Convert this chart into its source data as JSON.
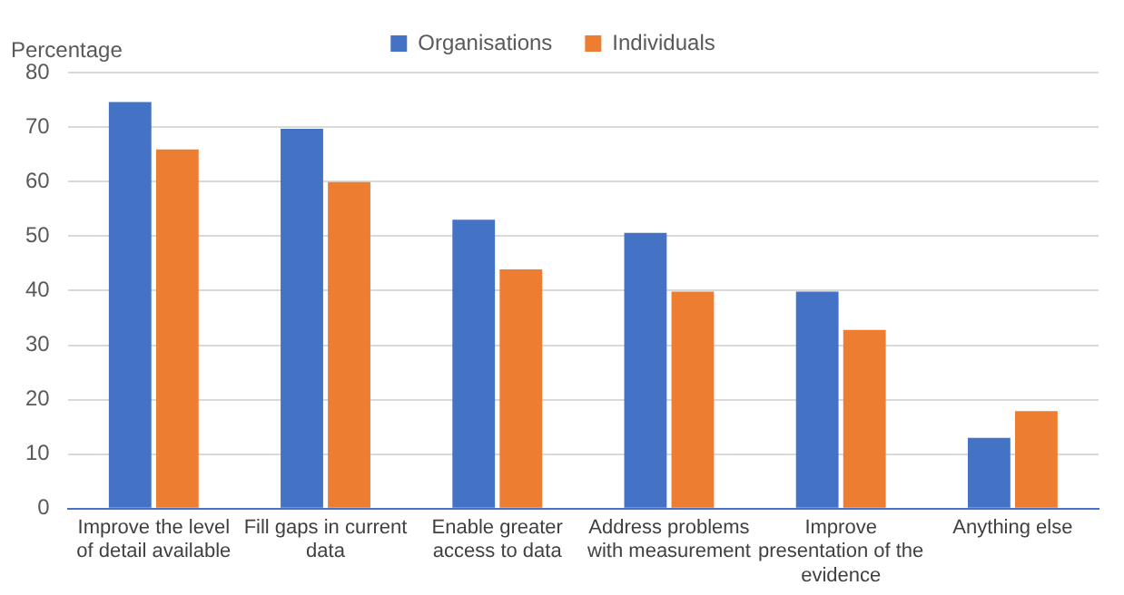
{
  "chart_data": {
    "type": "bar",
    "ylabel": "Percentage",
    "categories": [
      "Improve the level of detail available",
      "Fill gaps in current data",
      "Enable greater access to data",
      "Address problems with measurement",
      "Improve presentation of the evidence",
      "Anything else"
    ],
    "series": [
      {
        "name": "Organisations",
        "color": "#4472c4",
        "values": [
          74.6,
          69.7,
          53,
          50.6,
          39.8,
          13
        ]
      },
      {
        "name": "Individuals",
        "color": "#ed7d31",
        "values": [
          65.9,
          59.9,
          43.9,
          39.8,
          32.8,
          17.9
        ]
      }
    ],
    "ylim": [
      0,
      80
    ],
    "yticks": [
      0,
      10,
      20,
      30,
      40,
      50,
      60,
      70,
      80
    ],
    "grid": "y",
    "legend": "top"
  }
}
